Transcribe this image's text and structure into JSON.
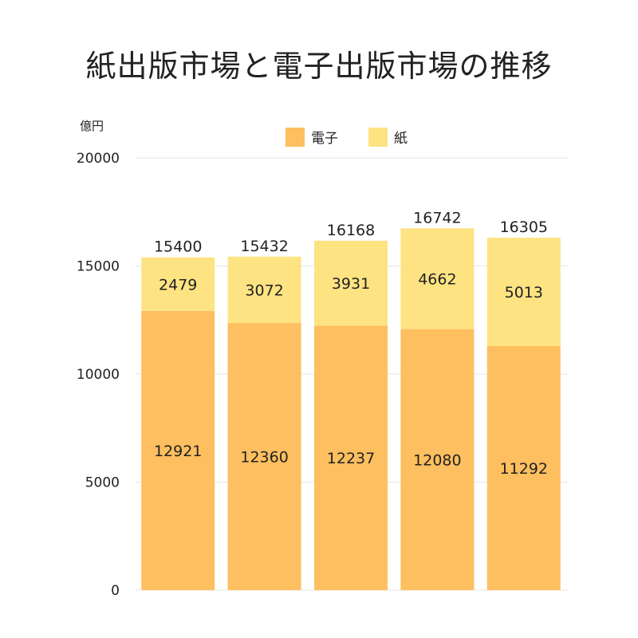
{
  "chart_data": {
    "type": "bar",
    "stacked": true,
    "title": "紙出版市場と電子出版市場の推移",
    "ylabel": "億円",
    "xlabel": "",
    "ylim": [
      0,
      20000
    ],
    "yticks": [
      0,
      5000,
      10000,
      15000,
      20000
    ],
    "grid": true,
    "legend_position": "top",
    "categories": [
      "",
      "",
      "",
      "",
      ""
    ],
    "series": [
      {
        "name": "電子",
        "color": "#FDBF5F",
        "values": [
          12921,
          12360,
          12237,
          12080,
          11292
        ]
      },
      {
        "name": "紙",
        "color": "#FDE382",
        "values": [
          2479,
          3072,
          3931,
          4662,
          5013
        ]
      }
    ],
    "totals": [
      15400,
      15432,
      16168,
      16742,
      16305
    ]
  }
}
